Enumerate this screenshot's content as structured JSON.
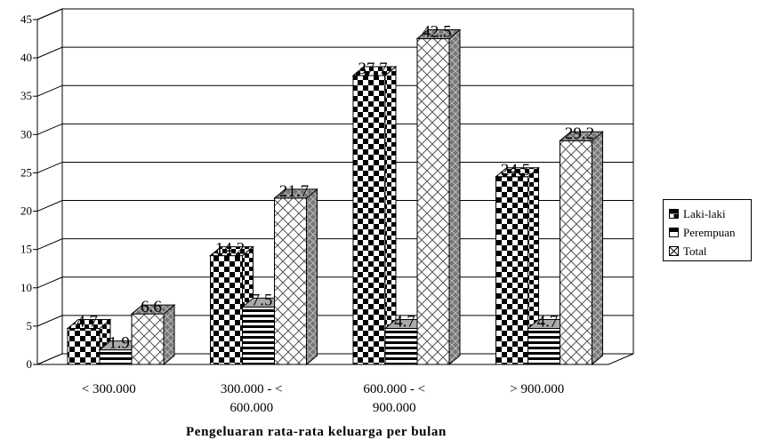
{
  "chart_data": {
    "type": "bar",
    "categories": [
      "< 300.000",
      "300.000 - < 600.000",
      "600.000 - < 900.000",
      "> 900.000"
    ],
    "category_lines": [
      [
        "< 300.000"
      ],
      [
        "300.000 - <",
        "600.000"
      ],
      [
        "600.000 - <",
        "900.000"
      ],
      [
        "> 900.000"
      ]
    ],
    "series": [
      {
        "name": "Laki-laki",
        "values": [
          4.7,
          14.2,
          37.7,
          24.5
        ]
      },
      {
        "name": "Perempuan",
        "values": [
          1.9,
          7.5,
          4.7,
          4.7
        ]
      },
      {
        "name": "Total",
        "values": [
          6.6,
          21.7,
          42.5,
          29.2
        ]
      }
    ],
    "xlabel": "Pengeluaran rata-rata keluarga per bulan",
    "ylabel": "",
    "ylim": [
      0,
      45
    ],
    "yticks": [
      0,
      5,
      10,
      15,
      20,
      25,
      30,
      35,
      40,
      45
    ],
    "grid": true,
    "legend": "right",
    "style": "3d-clustered",
    "patterns": [
      "checker",
      "horizontal-stripes",
      "diagonal-cross"
    ]
  }
}
